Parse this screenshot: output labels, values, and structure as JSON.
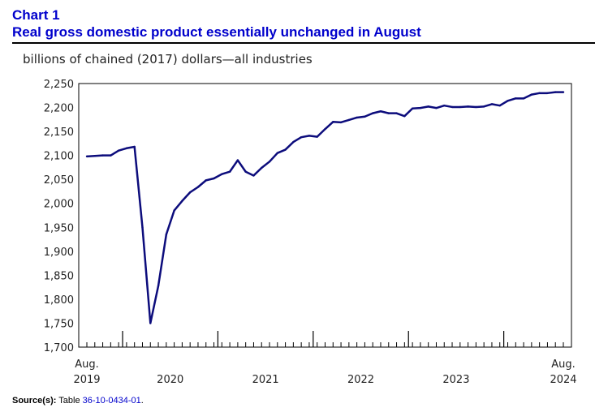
{
  "header": {
    "chart_label": "Chart 1",
    "title": "Real gross domestic product essentially unchanged in August"
  },
  "unit_label": "billions of chained (2017) dollars—all industries",
  "source": {
    "label": "Source(s):",
    "prefix": "Table",
    "table_link": "36-10-0434-01",
    "suffix": "."
  },
  "colors": {
    "line": "#0c0c7c",
    "title": "#0000cc"
  },
  "chart_data": {
    "type": "line",
    "title": "Real gross domestic product essentially unchanged in August",
    "ylabel": "billions of chained (2017) dollars—all industries",
    "xlabel": "",
    "ylim": [
      1700,
      2250
    ],
    "yticks": [
      "1,700",
      "1,750",
      "1,800",
      "1,850",
      "1,900",
      "1,950",
      "2,000",
      "2,050",
      "2,100",
      "2,150",
      "2,200",
      "2,250"
    ],
    "x_start": "Aug. 2019",
    "x_end": "Aug. 2024",
    "xtick_labels": [
      {
        "month_index": 0,
        "top": "Aug.",
        "bottom": "2019"
      },
      {
        "month_index": 10.5,
        "top": "",
        "bottom": "2020"
      },
      {
        "month_index": 22.5,
        "top": "",
        "bottom": "2021"
      },
      {
        "month_index": 34.5,
        "top": "",
        "bottom": "2022"
      },
      {
        "month_index": 46.5,
        "top": "",
        "bottom": "2023"
      },
      {
        "month_index": 60,
        "top": "Aug.",
        "bottom": "2024"
      }
    ],
    "year_boundaries": [
      4.5,
      16.5,
      28.5,
      40.5,
      52.5
    ],
    "series": [
      {
        "name": "Real GDP, all industries",
        "values": [
          2098,
          2099,
          2100,
          2100,
          2110,
          2115,
          2118,
          1950,
          1750,
          1828,
          1935,
          1985,
          2005,
          2023,
          2034,
          2048,
          2052,
          2061,
          2066,
          2090,
          2066,
          2058,
          2074,
          2087,
          2105,
          2112,
          2128,
          2138,
          2141,
          2139,
          2155,
          2170,
          2169,
          2174,
          2179,
          2181,
          2188,
          2192,
          2188,
          2188,
          2182,
          2198,
          2199,
          2202,
          2199,
          2204,
          2201,
          2201,
          2202,
          2201,
          2202,
          2207,
          2204,
          2214,
          2219,
          2219,
          2227,
          2230,
          2230,
          2232,
          2232
        ]
      }
    ]
  }
}
